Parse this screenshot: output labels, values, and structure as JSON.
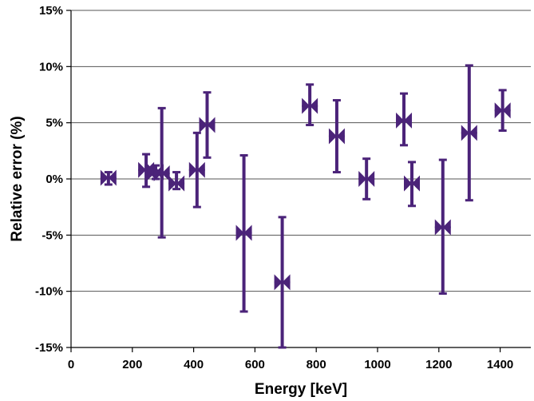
{
  "chart_data": {
    "type": "scatter",
    "title": "",
    "xlabel": "Energy [keV]",
    "ylabel": "Relative error (%)",
    "xlim": [
      0,
      1500
    ],
    "ylim": [
      -15,
      15
    ],
    "x_ticks": [
      0,
      200,
      400,
      600,
      800,
      1000,
      1200,
      1400
    ],
    "x_tick_labels": [
      "0",
      "200",
      "400",
      "600",
      "800",
      "1000",
      "1200",
      "1400"
    ],
    "y_ticks": [
      -15,
      -10,
      -5,
      0,
      5,
      10,
      15
    ],
    "y_tick_labels": [
      "-15%",
      "-10%",
      "-5%",
      "0%",
      "5%",
      "10%",
      "15%"
    ],
    "grid": {
      "horizontal": true,
      "vertical": false
    },
    "legend": "none",
    "marker": "bowtie",
    "color": "#4b2379",
    "series": [
      {
        "x": [
          122,
          245,
          276,
          296,
          344,
          411,
          444,
          564,
          689,
          779,
          867,
          964,
          1112,
          1086,
          1213,
          1299,
          1408
        ],
        "y": [
          0.1,
          0.8,
          0.6,
          0.5,
          -0.4,
          0.8,
          4.8,
          -4.8,
          -9.2,
          6.5,
          3.8,
          0.0,
          -0.4,
          5.2,
          -4.3,
          4.1,
          6.1
        ],
        "err_low": [
          -0.5,
          -0.7,
          0.0,
          -5.2,
          -0.9,
          -2.5,
          1.9,
          -11.8,
          -15.0,
          4.8,
          0.6,
          -1.8,
          -2.4,
          3.0,
          -10.2,
          -1.9,
          4.3
        ],
        "err_high": [
          0.6,
          2.2,
          1.2,
          6.3,
          0.6,
          4.1,
          7.7,
          2.1,
          -3.4,
          8.4,
          7.0,
          1.8,
          1.5,
          7.6,
          1.7,
          10.1,
          7.9
        ]
      }
    ]
  }
}
